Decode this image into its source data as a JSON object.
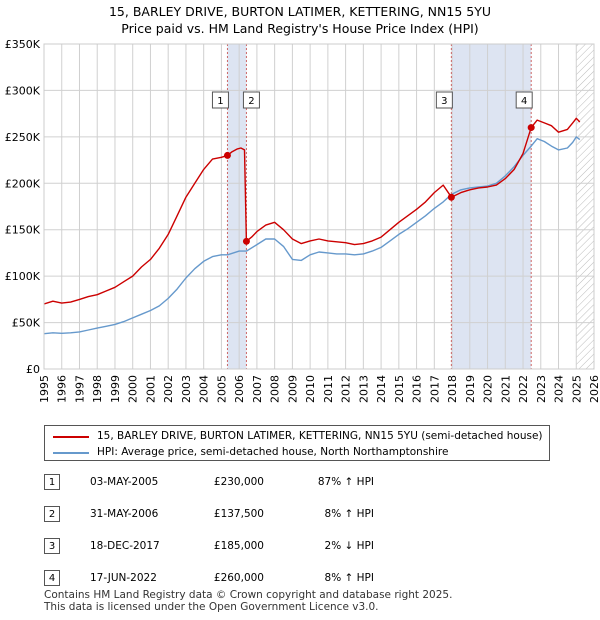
{
  "chart_data": {
    "type": "line",
    "title": "15, BARLEY DRIVE, BURTON LATIMER, KETTERING, NN15 5YU",
    "subtitle": "Price paid vs. HM Land Registry's House Price Index (HPI)",
    "xlim": [
      1995,
      2026
    ],
    "ylim": [
      0,
      350000
    ],
    "x_ticks": [
      "1995",
      "1996",
      "1997",
      "1998",
      "1999",
      "2000",
      "2001",
      "2002",
      "2003",
      "2004",
      "2005",
      "2006",
      "2007",
      "2008",
      "2009",
      "2010",
      "2011",
      "2012",
      "2013",
      "2014",
      "2015",
      "2016",
      "2017",
      "2018",
      "2019",
      "2020",
      "2021",
      "2022",
      "2023",
      "2024",
      "2025",
      "2026"
    ],
    "y_ticks": [
      {
        "value": 0,
        "label": "£0"
      },
      {
        "value": 50000,
        "label": "£50K"
      },
      {
        "value": 100000,
        "label": "£100K"
      },
      {
        "value": 150000,
        "label": "£150K"
      },
      {
        "value": 200000,
        "label": "£200K"
      },
      {
        "value": 250000,
        "label": "£250K"
      },
      {
        "value": 300000,
        "label": "£300K"
      },
      {
        "value": 350000,
        "label": "£350K"
      }
    ],
    "shade_regions": [
      [
        2005.34,
        2006.41
      ],
      [
        2017.96,
        2022.46
      ]
    ],
    "hatch_from": 2025.0,
    "series": [
      {
        "name": "15, BARLEY DRIVE, BURTON LATIMER, KETTERING, NN15 5YU (semi-detached house)",
        "color": "#cc0000",
        "points": [
          [
            1995.0,
            70000
          ],
          [
            1995.5,
            73000
          ],
          [
            1996.0,
            71000
          ],
          [
            1996.5,
            72000
          ],
          [
            1997.0,
            75000
          ],
          [
            1997.5,
            78000
          ],
          [
            1998.0,
            80000
          ],
          [
            1998.5,
            84000
          ],
          [
            1999.0,
            88000
          ],
          [
            1999.5,
            94000
          ],
          [
            2000.0,
            100000
          ],
          [
            2000.5,
            110000
          ],
          [
            2001.0,
            118000
          ],
          [
            2001.5,
            130000
          ],
          [
            2002.0,
            145000
          ],
          [
            2002.5,
            165000
          ],
          [
            2003.0,
            185000
          ],
          [
            2003.5,
            200000
          ],
          [
            2004.0,
            215000
          ],
          [
            2004.5,
            226000
          ],
          [
            2005.0,
            228000
          ],
          [
            2005.34,
            230000
          ],
          [
            2005.6,
            234000
          ],
          [
            2005.9,
            237000
          ],
          [
            2006.1,
            238000
          ],
          [
            2006.3,
            236000
          ],
          [
            2006.41,
            137500
          ],
          [
            2006.7,
            142000
          ],
          [
            2007.0,
            148000
          ],
          [
            2007.5,
            155000
          ],
          [
            2008.0,
            158000
          ],
          [
            2008.5,
            150000
          ],
          [
            2009.0,
            140000
          ],
          [
            2009.5,
            135000
          ],
          [
            2010.0,
            138000
          ],
          [
            2010.5,
            140000
          ],
          [
            2011.0,
            138000
          ],
          [
            2011.5,
            137000
          ],
          [
            2012.0,
            136000
          ],
          [
            2012.5,
            134000
          ],
          [
            2013.0,
            135000
          ],
          [
            2013.5,
            138000
          ],
          [
            2014.0,
            142000
          ],
          [
            2014.5,
            150000
          ],
          [
            2015.0,
            158000
          ],
          [
            2015.5,
            165000
          ],
          [
            2016.0,
            172000
          ],
          [
            2016.5,
            180000
          ],
          [
            2017.0,
            190000
          ],
          [
            2017.5,
            198000
          ],
          [
            2017.96,
            185000
          ],
          [
            2018.5,
            190000
          ],
          [
            2019.0,
            193000
          ],
          [
            2019.5,
            195000
          ],
          [
            2020.0,
            196000
          ],
          [
            2020.5,
            198000
          ],
          [
            2021.0,
            205000
          ],
          [
            2021.5,
            215000
          ],
          [
            2022.0,
            232000
          ],
          [
            2022.46,
            260000
          ],
          [
            2022.8,
            268000
          ],
          [
            2023.2,
            265000
          ],
          [
            2023.6,
            262000
          ],
          [
            2024.0,
            255000
          ],
          [
            2024.5,
            258000
          ],
          [
            2024.8,
            265000
          ],
          [
            2025.0,
            270000
          ],
          [
            2025.2,
            266000
          ]
        ]
      },
      {
        "name": "HPI: Average price, semi-detached house, North Northamptonshire",
        "color": "#6699cc",
        "points": [
          [
            1995.0,
            38000
          ],
          [
            1995.5,
            39000
          ],
          [
            1996.0,
            38500
          ],
          [
            1996.5,
            39000
          ],
          [
            1997.0,
            40000
          ],
          [
            1997.5,
            42000
          ],
          [
            1998.0,
            44000
          ],
          [
            1998.5,
            46000
          ],
          [
            1999.0,
            48000
          ],
          [
            1999.5,
            51000
          ],
          [
            2000.0,
            55000
          ],
          [
            2000.5,
            59000
          ],
          [
            2001.0,
            63000
          ],
          [
            2001.5,
            68000
          ],
          [
            2002.0,
            76000
          ],
          [
            2002.5,
            86000
          ],
          [
            2003.0,
            98000
          ],
          [
            2003.5,
            108000
          ],
          [
            2004.0,
            116000
          ],
          [
            2004.5,
            121000
          ],
          [
            2005.0,
            123000
          ],
          [
            2005.34,
            123000
          ],
          [
            2005.5,
            124000
          ],
          [
            2006.0,
            127000
          ],
          [
            2006.41,
            127000
          ],
          [
            2007.0,
            134000
          ],
          [
            2007.5,
            140000
          ],
          [
            2008.0,
            140000
          ],
          [
            2008.5,
            132000
          ],
          [
            2009.0,
            118000
          ],
          [
            2009.5,
            117000
          ],
          [
            2010.0,
            123000
          ],
          [
            2010.5,
            126000
          ],
          [
            2011.0,
            125000
          ],
          [
            2011.5,
            124000
          ],
          [
            2012.0,
            124000
          ],
          [
            2012.5,
            123000
          ],
          [
            2013.0,
            124000
          ],
          [
            2013.5,
            127000
          ],
          [
            2014.0,
            131000
          ],
          [
            2014.5,
            138000
          ],
          [
            2015.0,
            145000
          ],
          [
            2015.5,
            151000
          ],
          [
            2016.0,
            158000
          ],
          [
            2016.5,
            165000
          ],
          [
            2017.0,
            173000
          ],
          [
            2017.5,
            180000
          ],
          [
            2017.96,
            188000
          ],
          [
            2018.5,
            193000
          ],
          [
            2019.0,
            195000
          ],
          [
            2019.5,
            196000
          ],
          [
            2020.0,
            197000
          ],
          [
            2020.5,
            200000
          ],
          [
            2021.0,
            208000
          ],
          [
            2021.5,
            218000
          ],
          [
            2022.0,
            230000
          ],
          [
            2022.46,
            240000
          ],
          [
            2022.8,
            248000
          ],
          [
            2023.2,
            245000
          ],
          [
            2023.6,
            240000
          ],
          [
            2024.0,
            236000
          ],
          [
            2024.5,
            238000
          ],
          [
            2024.8,
            244000
          ],
          [
            2025.0,
            250000
          ],
          [
            2025.2,
            247000
          ]
        ]
      }
    ],
    "sales": [
      {
        "label": "1",
        "x": 2005.34,
        "y": 230000,
        "date": "03-MAY-2005",
        "price": "£230,000",
        "hpi": "87% ↑ HPI"
      },
      {
        "label": "2",
        "x": 2006.41,
        "y": 137500,
        "date": "31-MAY-2006",
        "price": "£137,500",
        "hpi": "8% ↑ HPI"
      },
      {
        "label": "3",
        "x": 2017.96,
        "y": 185000,
        "date": "18-DEC-2017",
        "price": "£185,000",
        "hpi": "2% ↓ HPI"
      },
      {
        "label": "4",
        "x": 2022.46,
        "y": 260000,
        "date": "17-JUN-2022",
        "price": "£260,000",
        "hpi": "8% ↑ HPI"
      }
    ]
  },
  "legend": {
    "property_label": "15, BARLEY DRIVE, BURTON LATIMER, KETTERING, NN15 5YU (semi-detached house)",
    "hpi_label": "HPI: Average price, semi-detached house, North Northamptonshire"
  },
  "footer": {
    "line1": "Contains HM Land Registry data © Crown copyright and database right 2025.",
    "line2": "This data is licensed under the Open Government Licence v3.0."
  },
  "colors": {
    "property": "#cc0000",
    "hpi": "#6699cc",
    "shade": "#dde4f2",
    "plot_bg": "#ffffff",
    "grid": "#d0d0d0",
    "marker_line": "#cc6666"
  }
}
